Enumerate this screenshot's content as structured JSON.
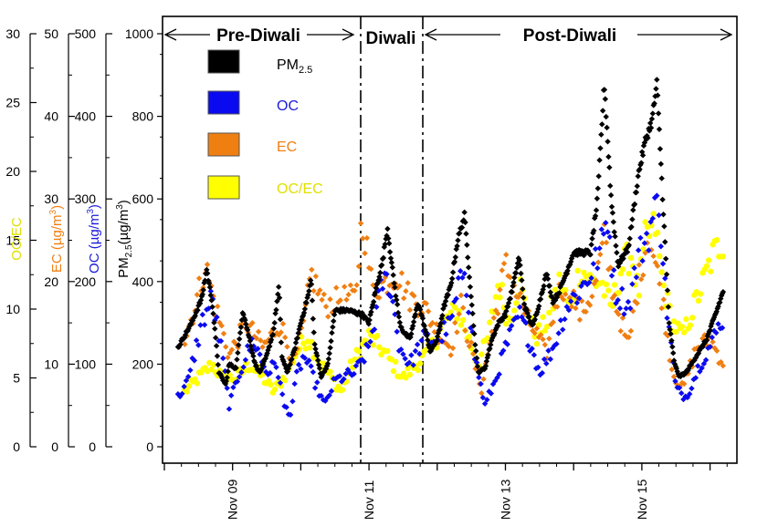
{
  "chart_data": {
    "type": "scatter",
    "x_range_days": [
      8.0,
      16.3
    ],
    "x_ticks": [
      {
        "day": 9,
        "label": "Nov 09"
      },
      {
        "day": 11,
        "label": "Nov 11"
      },
      {
        "day": 13,
        "label": "Nov 13"
      },
      {
        "day": 15,
        "label": "Nov 15"
      }
    ],
    "periods": [
      {
        "label": "Pre-Diwali",
        "start": 8.0,
        "end": 10.95
      },
      {
        "label": "Diwali",
        "start": 10.95,
        "end": 11.85
      },
      {
        "label": "Post-Diwali",
        "start": 11.85,
        "end": 16.3
      }
    ],
    "axes": [
      {
        "id": "pm25",
        "label_main": "PM",
        "label_sub": "2.5",
        "label_unit": "(µg/m",
        "label_sup": "3",
        "label_end": ")",
        "min": 0,
        "max": 1000,
        "ticks": [
          0,
          200,
          400,
          600,
          800,
          1000
        ],
        "color": "#000000"
      },
      {
        "id": "oc",
        "label_main": "OC (µg/m",
        "label_sup": "3",
        "label_end": ")",
        "min": 0,
        "max": 500,
        "ticks": [
          0,
          100,
          200,
          300,
          400,
          500
        ],
        "color": "#1a1ad8"
      },
      {
        "id": "ec",
        "label_main": "EC (µg/m",
        "label_sup": "3",
        "label_end": ")",
        "min": 0,
        "max": 50,
        "ticks": [
          0,
          10,
          20,
          30,
          40,
          50
        ],
        "color": "#f07f12"
      },
      {
        "id": "ocec",
        "label_main": "OC/EC",
        "min": 0,
        "max": 30,
        "ticks": [
          0,
          5,
          10,
          15,
          20,
          25,
          30
        ],
        "color": "#e0e000"
      }
    ],
    "legend": [
      {
        "label_main": "PM",
        "label_sub": "2.5",
        "color": "#000000",
        "text_color": "#000000"
      },
      {
        "label_main": "OC",
        "color": "#0a0af0",
        "text_color": "#1a1ad8"
      },
      {
        "label_main": "EC",
        "color": "#f07f12",
        "text_color": "#f07f12"
      },
      {
        "label_main": "OC/EC",
        "color": "#ffff00",
        "text_color": "#e0e000"
      }
    ],
    "series": [
      {
        "name": "PM2.5",
        "axis": "pm25",
        "color": "#000000",
        "marker": "diamond",
        "points": [
          [
            8.2,
            240
          ],
          [
            8.4,
            300
          ],
          [
            8.55,
            360
          ],
          [
            8.62,
            430
          ],
          [
            8.7,
            350
          ],
          [
            8.8,
            180
          ],
          [
            8.9,
            150
          ],
          [
            8.95,
            200
          ],
          [
            9.05,
            190
          ],
          [
            9.15,
            330
          ],
          [
            9.25,
            260
          ],
          [
            9.33,
            200
          ],
          [
            9.4,
            180
          ],
          [
            9.5,
            220
          ],
          [
            9.6,
            280
          ],
          [
            9.68,
            390
          ],
          [
            9.72,
            220
          ],
          [
            9.8,
            180
          ],
          [
            9.9,
            230
          ],
          [
            10.0,
            300
          ],
          [
            10.05,
            330
          ],
          [
            10.12,
            375
          ],
          [
            10.15,
            410
          ],
          [
            10.2,
            250
          ],
          [
            10.3,
            170
          ],
          [
            10.4,
            200
          ],
          [
            10.5,
            330
          ],
          [
            10.7,
            330
          ],
          [
            10.9,
            320
          ],
          [
            11.0,
            300
          ],
          [
            11.1,
            380
          ],
          [
            11.2,
            450
          ],
          [
            11.27,
            530
          ],
          [
            11.35,
            420
          ],
          [
            11.45,
            300
          ],
          [
            11.5,
            280
          ],
          [
            11.6,
            260
          ],
          [
            11.72,
            350
          ],
          [
            11.8,
            300
          ],
          [
            11.9,
            230
          ],
          [
            12.0,
            260
          ],
          [
            12.1,
            340
          ],
          [
            12.2,
            390
          ],
          [
            12.3,
            500
          ],
          [
            12.4,
            560
          ],
          [
            12.45,
            460
          ],
          [
            12.55,
            260
          ],
          [
            12.6,
            180
          ],
          [
            12.7,
            190
          ],
          [
            12.8,
            260
          ],
          [
            12.9,
            300
          ],
          [
            13.0,
            320
          ],
          [
            13.1,
            380
          ],
          [
            13.2,
            460
          ],
          [
            13.28,
            340
          ],
          [
            13.4,
            290
          ],
          [
            13.5,
            350
          ],
          [
            13.6,
            420
          ],
          [
            13.7,
            350
          ],
          [
            13.8,
            380
          ],
          [
            14.0,
            470
          ],
          [
            14.1,
            470
          ],
          [
            14.25,
            470
          ],
          [
            14.35,
            600
          ],
          [
            14.45,
            880
          ],
          [
            14.55,
            600
          ],
          [
            14.65,
            440
          ],
          [
            14.8,
            480
          ],
          [
            14.95,
            660
          ],
          [
            15.05,
            740
          ],
          [
            15.15,
            790
          ],
          [
            15.22,
            880
          ],
          [
            15.3,
            620
          ],
          [
            15.4,
            300
          ],
          [
            15.48,
            200
          ],
          [
            15.55,
            170
          ],
          [
            15.65,
            180
          ],
          [
            15.8,
            220
          ],
          [
            15.95,
            260
          ],
          [
            16.1,
            330
          ],
          [
            16.2,
            380
          ]
        ]
      },
      {
        "name": "OC",
        "axis": "oc",
        "color": "#0a0af0",
        "marker": "diamond",
        "points": [
          [
            8.2,
            60
          ],
          [
            8.35,
            80
          ],
          [
            8.55,
            150
          ],
          [
            8.7,
            180
          ],
          [
            8.85,
            110
          ],
          [
            8.95,
            50
          ],
          [
            9.1,
            90
          ],
          [
            9.3,
            130
          ],
          [
            9.5,
            90
          ],
          [
            9.65,
            100
          ],
          [
            9.75,
            50
          ],
          [
            9.85,
            40
          ],
          [
            9.95,
            90
          ],
          [
            10.05,
            110
          ],
          [
            10.2,
            80
          ],
          [
            10.35,
            50
          ],
          [
            10.5,
            80
          ],
          [
            10.8,
            90
          ],
          [
            11.0,
            120
          ],
          [
            11.2,
            200
          ],
          [
            11.3,
            200
          ],
          [
            11.45,
            120
          ],
          [
            11.6,
            100
          ],
          [
            11.8,
            130
          ],
          [
            12.0,
            130
          ],
          [
            12.2,
            150
          ],
          [
            12.4,
            220
          ],
          [
            12.55,
            110
          ],
          [
            12.7,
            50
          ],
          [
            12.85,
            80
          ],
          [
            13.0,
            120
          ],
          [
            13.2,
            160
          ],
          [
            13.35,
            130
          ],
          [
            13.5,
            90
          ],
          [
            13.7,
            120
          ],
          [
            13.9,
            170
          ],
          [
            14.1,
            190
          ],
          [
            14.25,
            210
          ],
          [
            14.4,
            240
          ],
          [
            14.5,
            280
          ],
          [
            14.6,
            190
          ],
          [
            14.8,
            170
          ],
          [
            14.95,
            230
          ],
          [
            15.1,
            260
          ],
          [
            15.25,
            300
          ],
          [
            15.35,
            180
          ],
          [
            15.5,
            70
          ],
          [
            15.65,
            60
          ],
          [
            15.85,
            100
          ],
          [
            16.05,
            130
          ],
          [
            16.2,
            160
          ]
        ]
      },
      {
        "name": "EC",
        "axis": "ec",
        "color": "#f07f12",
        "marker": "diamond",
        "points": [
          [
            8.3,
            13
          ],
          [
            8.45,
            17
          ],
          [
            8.6,
            22
          ],
          [
            8.75,
            17
          ],
          [
            8.95,
            11
          ],
          [
            9.2,
            15
          ],
          [
            9.45,
            12
          ],
          [
            9.7,
            15
          ],
          [
            9.9,
            10
          ],
          [
            10.05,
            15
          ],
          [
            10.15,
            21
          ],
          [
            10.35,
            17
          ],
          [
            10.6,
            18
          ],
          [
            10.8,
            18
          ],
          [
            10.9,
            28
          ],
          [
            11.05,
            19
          ],
          [
            11.25,
            20
          ],
          [
            11.4,
            21
          ],
          [
            11.6,
            18
          ],
          [
            11.8,
            17
          ],
          [
            12.0,
            14
          ],
          [
            12.2,
            12
          ],
          [
            12.35,
            17
          ],
          [
            12.55,
            10
          ],
          [
            12.65,
            7
          ],
          [
            12.8,
            14
          ],
          [
            13.0,
            22
          ],
          [
            13.2,
            18
          ],
          [
            13.35,
            15
          ],
          [
            13.5,
            13
          ],
          [
            13.6,
            11
          ],
          [
            13.75,
            18
          ],
          [
            13.9,
            20
          ],
          [
            14.1,
            16
          ],
          [
            14.3,
            19
          ],
          [
            14.45,
            25
          ],
          [
            14.6,
            18
          ],
          [
            14.8,
            12
          ],
          [
            14.95,
            20
          ],
          [
            15.1,
            26
          ],
          [
            15.3,
            18
          ],
          [
            15.45,
            9
          ],
          [
            15.6,
            7
          ],
          [
            15.8,
            12
          ],
          [
            16.0,
            13
          ],
          [
            16.2,
            10
          ]
        ]
      },
      {
        "name": "OC/EC",
        "axis": "ocec",
        "color": "#ffff00",
        "marker": "circle",
        "points": [
          [
            8.3,
            4
          ],
          [
            8.5,
            5
          ],
          [
            8.7,
            6
          ],
          [
            8.85,
            5
          ],
          [
            9.05,
            5
          ],
          [
            9.25,
            6
          ],
          [
            9.45,
            5
          ],
          [
            9.6,
            4
          ],
          [
            9.75,
            5
          ],
          [
            9.95,
            7
          ],
          [
            10.1,
            8
          ],
          [
            10.3,
            6
          ],
          [
            10.45,
            5
          ],
          [
            10.6,
            4
          ],
          [
            10.75,
            6
          ],
          [
            11.0,
            8
          ],
          [
            11.2,
            7
          ],
          [
            11.35,
            6
          ],
          [
            11.5,
            5
          ],
          [
            11.7,
            6
          ],
          [
            11.9,
            7
          ],
          [
            12.1,
            9
          ],
          [
            12.3,
            10
          ],
          [
            12.45,
            8
          ],
          [
            12.6,
            6
          ],
          [
            12.75,
            8
          ],
          [
            12.9,
            12
          ],
          [
            13.05,
            9
          ],
          [
            13.2,
            12
          ],
          [
            13.3,
            10
          ],
          [
            13.45,
            8
          ],
          [
            13.6,
            9
          ],
          [
            13.8,
            12
          ],
          [
            13.95,
            10
          ],
          [
            14.1,
            13
          ],
          [
            14.25,
            12
          ],
          [
            14.4,
            12
          ],
          [
            14.55,
            10
          ],
          [
            14.7,
            13
          ],
          [
            14.85,
            14
          ],
          [
            14.95,
            11
          ],
          [
            15.05,
            15
          ],
          [
            15.2,
            16
          ],
          [
            15.3,
            12
          ],
          [
            15.45,
            9
          ],
          [
            15.6,
            8
          ],
          [
            15.75,
            10
          ],
          [
            15.9,
            12
          ],
          [
            16.05,
            14
          ],
          [
            16.2,
            15
          ]
        ]
      }
    ]
  }
}
